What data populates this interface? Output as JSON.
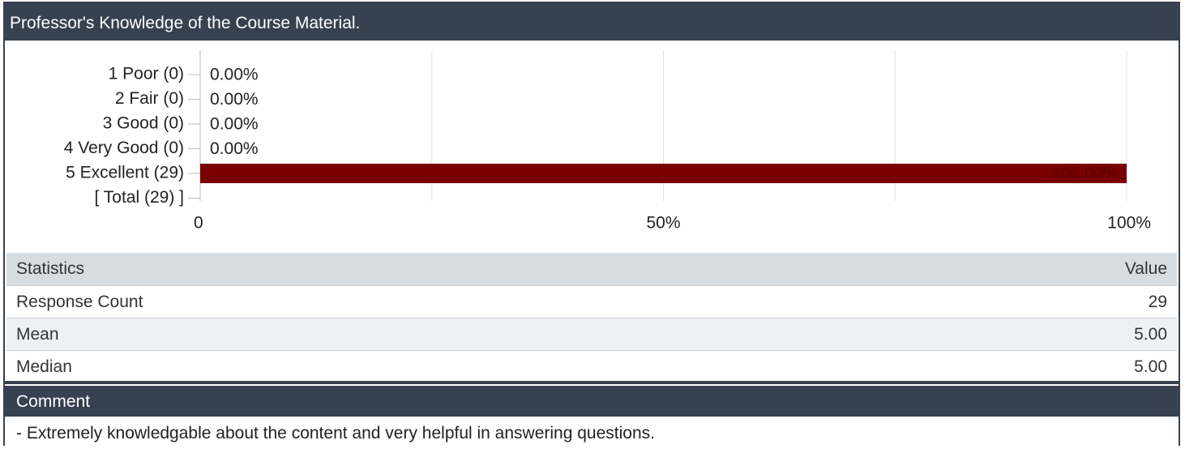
{
  "header": {
    "title": "Professor's Knowledge of the Course Material."
  },
  "chart_data": {
    "type": "bar",
    "orientation": "horizontal",
    "categories": [
      "1 Poor (0)",
      "2 Fair (0)",
      "3 Good (0)",
      "4 Very Good (0)",
      "5 Excellent (29)",
      "[ Total (29) ]"
    ],
    "values": [
      0,
      0,
      0,
      0,
      100,
      null
    ],
    "value_labels": [
      "0.00%",
      "0.00%",
      "0.00%",
      "0.00%",
      "100.00%",
      null
    ],
    "color": "#7a0000",
    "xlim": [
      0,
      100
    ],
    "xticks": [
      0,
      {
        "value": 50,
        "label": "50%"
      },
      {
        "value": 100,
        "label": "100%"
      }
    ],
    "minor_xticks": [
      25,
      75
    ],
    "grid": true
  },
  "table": {
    "headers": [
      "Statistics",
      "Value"
    ],
    "rows": [
      [
        "Response Count",
        "29"
      ],
      [
        "Mean",
        "5.00"
      ],
      [
        "Median",
        "5.00"
      ]
    ]
  },
  "comments": {
    "title": "Comment",
    "items": [
      "- Extremely knowledgable about the content and very helpful in answering questions."
    ]
  }
}
